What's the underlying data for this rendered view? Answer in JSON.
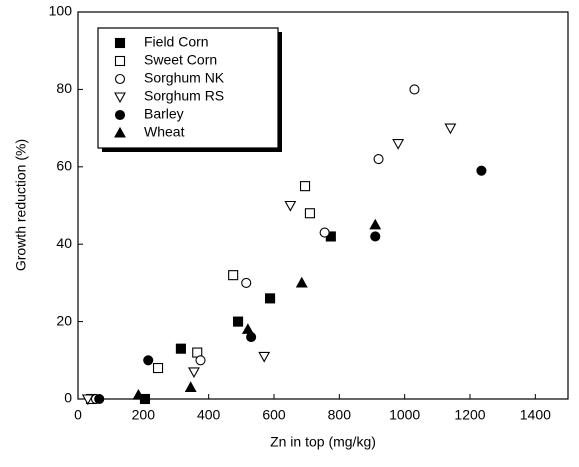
{
  "chart_data": {
    "type": "scatter",
    "x_label": "Zn in top (mg/kg)",
    "y_label": "Growth reduction (%)",
    "xlim": [
      0,
      1500
    ],
    "xticks": [
      0,
      200,
      400,
      600,
      800,
      1000,
      1200,
      1400
    ],
    "ylim": [
      0,
      100
    ],
    "yticks": [
      0,
      20,
      40,
      60,
      80,
      100
    ],
    "legend": "upper-left",
    "series": [
      {
        "name": "Field Corn",
        "color": "#000000",
        "marker": "square",
        "filled": true,
        "x": [
          205,
          315,
          490,
          588,
          774
        ],
        "values": [
          0,
          13,
          20,
          26,
          42
        ]
      },
      {
        "name": "Sweet Corn",
        "color": "#000000",
        "marker": "square",
        "filled": false,
        "x": [
          40,
          245,
          365,
          475,
          695,
          710
        ],
        "values": [
          0,
          8,
          12,
          32,
          55,
          48
        ]
      },
      {
        "name": "Sorghum NK",
        "color": "#000000",
        "marker": "circle",
        "filled": false,
        "x": [
          55,
          375,
          515,
          755,
          920,
          1030
        ],
        "values": [
          0,
          10,
          30,
          43,
          62,
          80
        ]
      },
      {
        "name": "Sorghum RS",
        "color": "#000000",
        "marker": "triangle-down",
        "filled": false,
        "x": [
          30,
          355,
          570,
          650,
          980,
          1140
        ],
        "values": [
          0,
          7,
          11,
          50,
          66,
          70
        ]
      },
      {
        "name": "Barley",
        "color": "#000000",
        "marker": "circle",
        "filled": true,
        "x": [
          65,
          215,
          530,
          910,
          1235
        ],
        "values": [
          0,
          10,
          16,
          42,
          59
        ]
      },
      {
        "name": "Wheat",
        "color": "#000000",
        "marker": "triangle-up",
        "filled": true,
        "x": [
          185,
          345,
          520,
          685,
          910
        ],
        "values": [
          1,
          3,
          18,
          30,
          45
        ]
      }
    ]
  }
}
